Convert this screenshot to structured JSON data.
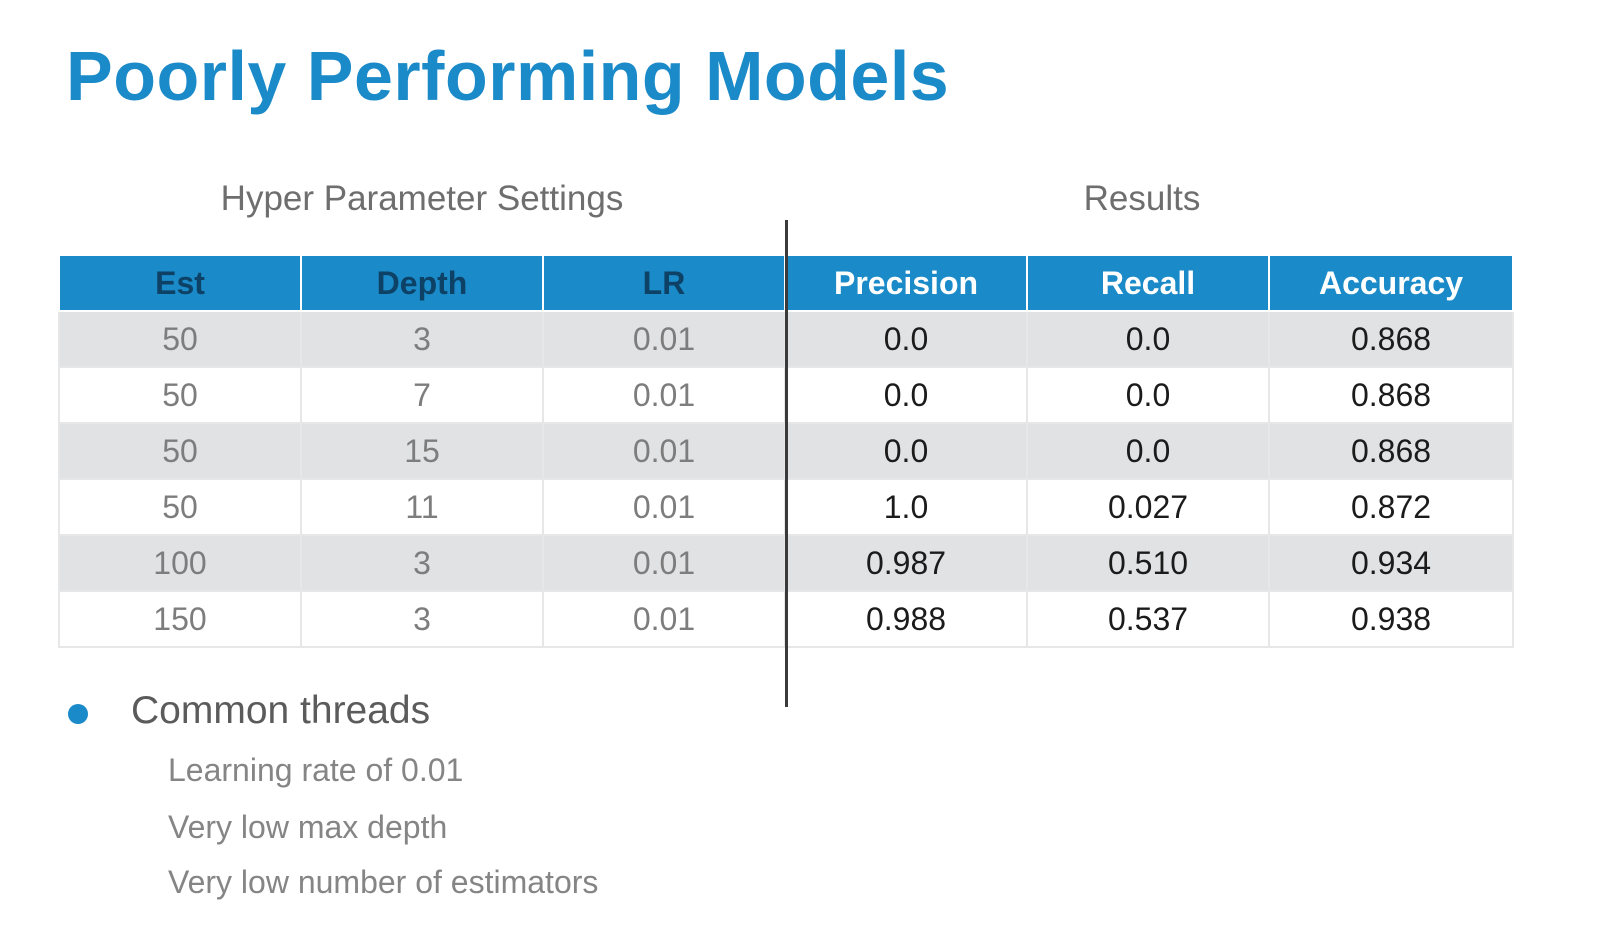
{
  "title": "Poorly Performing Models",
  "groups": {
    "hyper": "Hyper Parameter Settings",
    "results": "Results"
  },
  "table": {
    "headers": [
      "Est",
      "Depth",
      "LR",
      "Precision",
      "Recall",
      "Accuracy"
    ],
    "rows": [
      [
        "50",
        "3",
        "0.01",
        "0.0",
        "0.0",
        "0.868"
      ],
      [
        "50",
        "7",
        "0.01",
        "0.0",
        "0.0",
        "0.868"
      ],
      [
        "50",
        "15",
        "0.01",
        "0.0",
        "0.0",
        "0.868"
      ],
      [
        "50",
        "11",
        "0.01",
        "1.0",
        "0.027",
        "0.872"
      ],
      [
        "100",
        "3",
        "0.01",
        "0.987",
        "0.510",
        "0.934"
      ],
      [
        "150",
        "3",
        "0.01",
        "0.988",
        "0.537",
        "0.938"
      ]
    ]
  },
  "notes": {
    "heading": "Common threads",
    "items": [
      "Learning rate of 0.01",
      "Very low max depth",
      "Very low number of estimators"
    ]
  },
  "colors": {
    "accent": "#1a8ac8",
    "header_dark_text": "#0d4166",
    "row_shade": "#e1e2e4"
  }
}
